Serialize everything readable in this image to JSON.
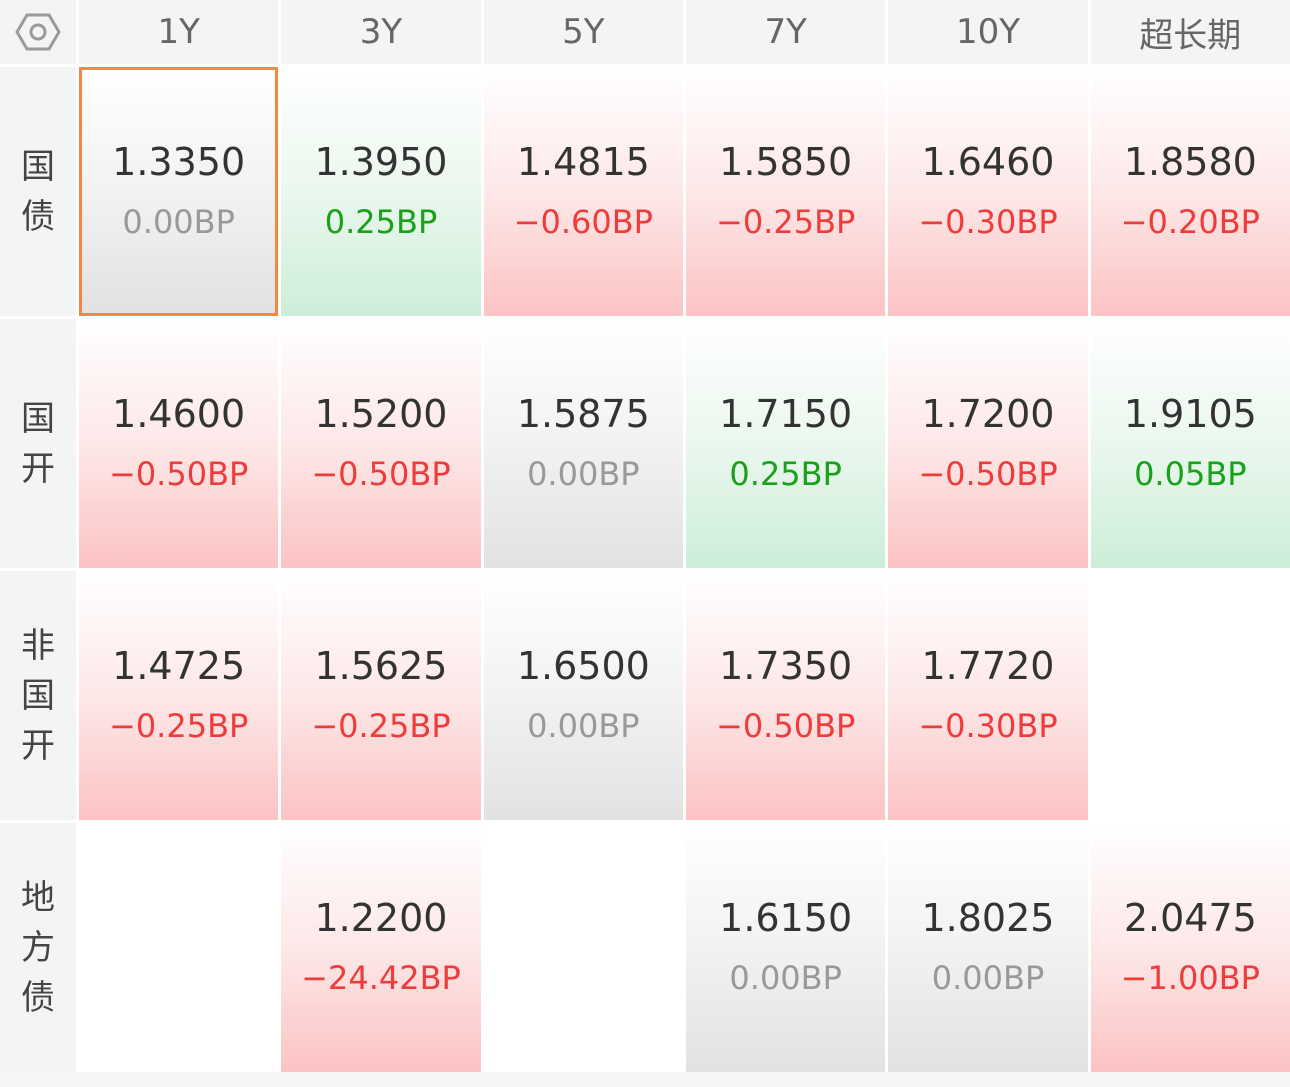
{
  "header": {
    "columns": [
      "1Y",
      "3Y",
      "5Y",
      "7Y",
      "10Y",
      "超长期"
    ]
  },
  "rows": [
    {
      "label": [
        "国",
        "债"
      ],
      "cells": [
        {
          "rate": "1.3350",
          "change": "0.00BP",
          "trend": "flat",
          "selected": true
        },
        {
          "rate": "1.3950",
          "change": "0.25BP",
          "trend": "up"
        },
        {
          "rate": "1.4815",
          "change": "−0.60BP",
          "trend": "down"
        },
        {
          "rate": "1.5850",
          "change": "−0.25BP",
          "trend": "down"
        },
        {
          "rate": "1.6460",
          "change": "−0.30BP",
          "trend": "down"
        },
        {
          "rate": "1.8580",
          "change": "−0.20BP",
          "trend": "down"
        }
      ]
    },
    {
      "label": [
        "国",
        "开"
      ],
      "cells": [
        {
          "rate": "1.4600",
          "change": "−0.50BP",
          "trend": "down"
        },
        {
          "rate": "1.5200",
          "change": "−0.50BP",
          "trend": "down"
        },
        {
          "rate": "1.5875",
          "change": "0.00BP",
          "trend": "flat"
        },
        {
          "rate": "1.7150",
          "change": "0.25BP",
          "trend": "up"
        },
        {
          "rate": "1.7200",
          "change": "−0.50BP",
          "trend": "down"
        },
        {
          "rate": "1.9105",
          "change": "0.05BP",
          "trend": "up"
        }
      ]
    },
    {
      "label": [
        "非",
        "国",
        "开"
      ],
      "cells": [
        {
          "rate": "1.4725",
          "change": "−0.25BP",
          "trend": "down"
        },
        {
          "rate": "1.5625",
          "change": "−0.25BP",
          "trend": "down"
        },
        {
          "rate": "1.6500",
          "change": "0.00BP",
          "trend": "flat"
        },
        {
          "rate": "1.7350",
          "change": "−0.50BP",
          "trend": "down"
        },
        {
          "rate": "1.7720",
          "change": "−0.30BP",
          "trend": "down"
        },
        null
      ]
    },
    {
      "label": [
        "地",
        "方",
        "债"
      ],
      "cells": [
        null,
        {
          "rate": "1.2200",
          "change": "−24.42BP",
          "trend": "down"
        },
        null,
        {
          "rate": "1.6150",
          "change": "0.00BP",
          "trend": "flat"
        },
        {
          "rate": "1.8025",
          "change": "0.00BP",
          "trend": "flat"
        },
        {
          "rate": "2.0475",
          "change": "−1.00BP",
          "trend": "down"
        }
      ]
    }
  ],
  "colors": {
    "down": "#f03b3b",
    "up": "#1aa11a",
    "flat": "#999999",
    "selected_border": "#f6873c"
  },
  "icons": {
    "corner": "settings-hexagon-icon"
  }
}
